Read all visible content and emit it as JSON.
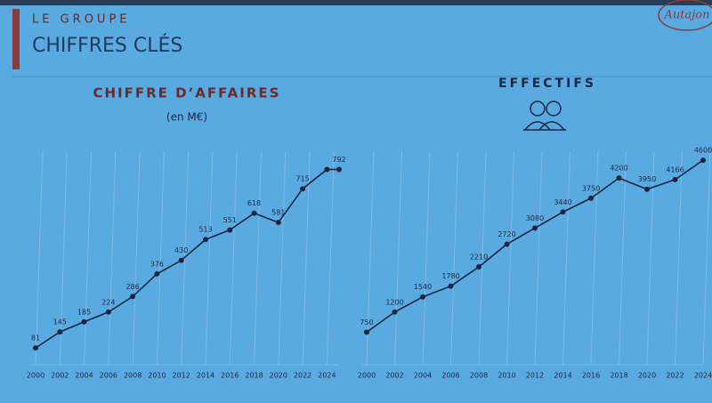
{
  "header": {
    "kicker": "LE GROUPE",
    "title": "CHIFFRES CLÉS"
  },
  "logo": "Autajon",
  "chart_data": [
    {
      "type": "line",
      "title": "CHIFFRE D’AFFAIRES",
      "subtitle": "(en M€)",
      "x": [
        2000,
        2002,
        2004,
        2006,
        2008,
        2010,
        2012,
        2014,
        2016,
        2018,
        2020,
        2022,
        2024,
        2025
      ],
      "values": [
        81,
        145,
        185,
        224,
        286,
        376,
        430,
        513,
        551,
        618,
        581,
        715,
        792,
        792
      ],
      "value_labels": [
        "81",
        "145",
        "185",
        "224",
        "286",
        "376",
        "430",
        "513",
        "551",
        "618",
        "581",
        "715",
        null,
        "792"
      ],
      "color": "#1d2640",
      "xlim": [
        2000,
        2025
      ],
      "ylim": [
        0,
        900
      ],
      "xticks": [
        2000,
        2002,
        2004,
        2006,
        2008,
        2010,
        2012,
        2014,
        2016,
        2018,
        2020,
        2022,
        2024
      ],
      "grid": true
    },
    {
      "type": "line",
      "title": "EFFECTIFS",
      "x": [
        2000,
        2002,
        2004,
        2006,
        2008,
        2010,
        2012,
        2014,
        2016,
        2018,
        2020,
        2022,
        2024
      ],
      "values": [
        750,
        1200,
        1540,
        1780,
        2210,
        2720,
        3080,
        3440,
        3750,
        4200,
        3950,
        4166,
        4600
      ],
      "color": "#1d2640",
      "xlim": [
        2000,
        2024
      ],
      "ylim": [
        0,
        5000
      ],
      "xticks": [
        2000,
        2002,
        2004,
        2006,
        2008,
        2010,
        2012,
        2014,
        2016,
        2018,
        2020,
        2022,
        2024
      ],
      "grid": true
    }
  ]
}
